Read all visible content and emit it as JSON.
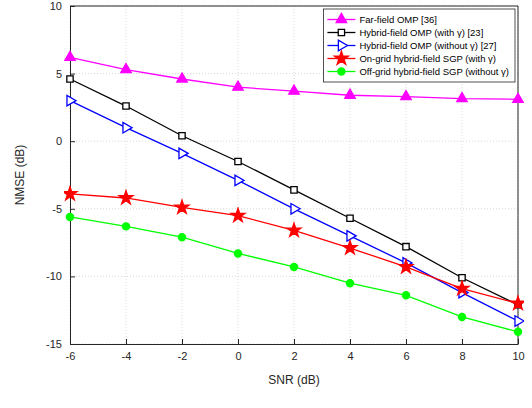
{
  "chart_data": {
    "type": "line",
    "x_label": "SNR (dB)",
    "y_label": "NMSE (dB)",
    "x": [
      -6,
      -4,
      -2,
      0,
      2,
      4,
      6,
      8,
      10
    ],
    "xlim": [
      -6,
      10
    ],
    "xticks": [
      -6,
      -4,
      -2,
      0,
      2,
      4,
      6,
      8,
      10
    ],
    "ylim": [
      -15,
      10
    ],
    "yticks": [
      -15,
      -10,
      -5,
      0,
      5,
      10
    ],
    "grid": true,
    "legend": "upper right",
    "series": [
      {
        "name": "Far-field OMP [36]",
        "color": "#ff00ff",
        "marker": "triangle-up",
        "line_style": "solid",
        "values": [
          6.2,
          5.3,
          4.6,
          4.0,
          3.7,
          3.4,
          3.3,
          3.15,
          3.1
        ]
      },
      {
        "name": "Hybrid-field OMP (with γ) [23]",
        "color": "#000000",
        "marker": "square",
        "line_style": "solid",
        "values": [
          4.6,
          2.6,
          0.4,
          -1.5,
          -3.6,
          -5.7,
          -7.8,
          -10.1,
          -12.1
        ]
      },
      {
        "name": "Hybrid-field OMP (without γ) [27]",
        "color": "#0000ff",
        "marker": "triangle-right",
        "line_style": "solid",
        "values": [
          3.0,
          1.0,
          -0.9,
          -2.9,
          -5.0,
          -7.0,
          -9.0,
          -11.2,
          -13.3
        ]
      },
      {
        "name": "On-grid hybrid-field SGP (with γ)",
        "color": "#ff0000",
        "marker": "star",
        "line_style": "solid",
        "values": [
          -3.9,
          -4.2,
          -4.9,
          -5.5,
          -6.6,
          -7.9,
          -9.3,
          -10.9,
          -12.0
        ]
      },
      {
        "name": "Off-grid hybrid-field SGP (without γ)",
        "color": "#00ff00",
        "marker": "circle",
        "line_style": "solid",
        "values": [
          -5.6,
          -6.3,
          -7.1,
          -8.3,
          -9.3,
          -10.5,
          -11.4,
          -13.0,
          -14.1
        ]
      }
    ]
  }
}
